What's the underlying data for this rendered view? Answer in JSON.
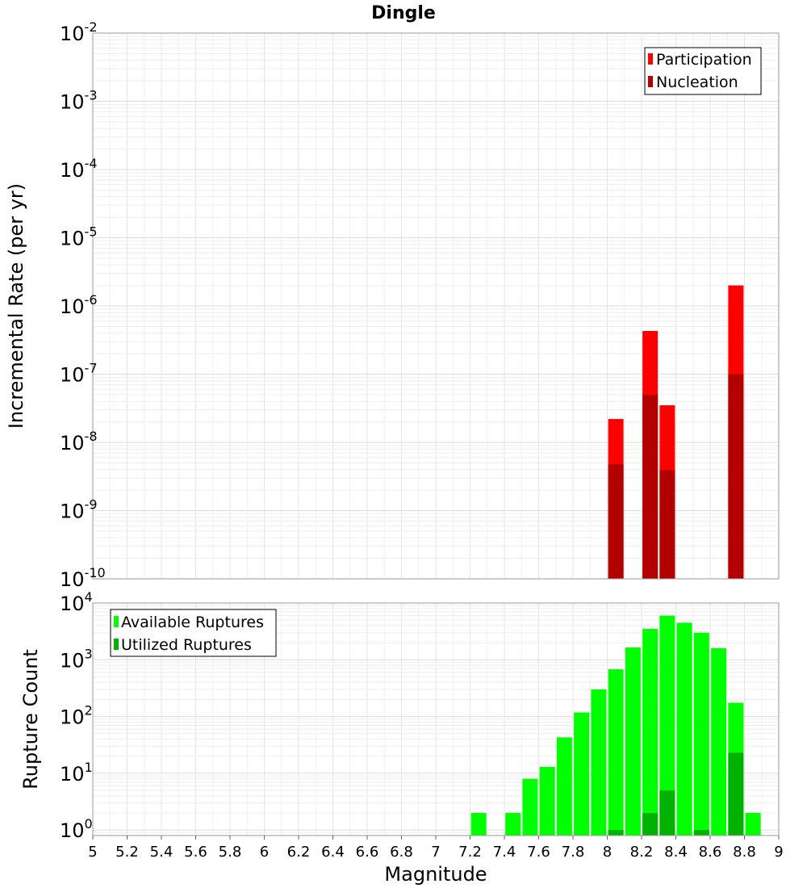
{
  "chart_data": [
    {
      "type": "bar",
      "title": "Dingle",
      "ylabel": "Incremental Rate (per yr)",
      "yscale": "log",
      "ylim": [
        1e-10,
        0.01
      ],
      "y_ticks": [
        {
          "base": "10",
          "exp": "-2"
        },
        {
          "base": "10",
          "exp": "-3"
        },
        {
          "base": "10",
          "exp": "-4"
        },
        {
          "base": "10",
          "exp": "-5"
        },
        {
          "base": "10",
          "exp": "-6"
        },
        {
          "base": "10",
          "exp": "-7"
        },
        {
          "base": "10",
          "exp": "-8"
        },
        {
          "base": "10",
          "exp": "-9"
        },
        {
          "base": "10",
          "exp": "-10"
        }
      ],
      "xlim": [
        5,
        9
      ],
      "grid": true,
      "legend_position": "top-right",
      "series": [
        {
          "name": "Participation",
          "color": "#ff0000",
          "points": [
            {
              "x": 8.05,
              "y": 2.2e-08
            },
            {
              "x": 8.25,
              "y": 4.3e-07
            },
            {
              "x": 8.35,
              "y": 3.5e-08
            },
            {
              "x": 8.75,
              "y": 2e-06
            }
          ]
        },
        {
          "name": "Nucleation",
          "color": "#b20000",
          "points": [
            {
              "x": 8.05,
              "y": 4.8e-09
            },
            {
              "x": 8.25,
              "y": 5e-08
            },
            {
              "x": 8.35,
              "y": 3.9e-09
            },
            {
              "x": 8.75,
              "y": 1e-07
            }
          ]
        }
      ]
    },
    {
      "type": "bar",
      "xlabel": "Magnitude",
      "ylabel": "Rupture Count",
      "yscale": "log",
      "ylim": [
        0.8,
        10000
      ],
      "y_ticks": [
        {
          "value": 10000,
          "base": "10",
          "exp": "4"
        },
        {
          "value": 1000,
          "base": "10",
          "exp": "3"
        },
        {
          "value": 100,
          "base": "10",
          "exp": "2"
        },
        {
          "value": 10,
          "base": "10",
          "exp": "1"
        },
        {
          "value": 1,
          "base": "10",
          "exp": "0"
        }
      ],
      "xlim": [
        5,
        9
      ],
      "x_ticks": [
        "5",
        "5.2",
        "5.4",
        "5.6",
        "5.8",
        "6",
        "6.2",
        "6.4",
        "6.6",
        "6.8",
        "7",
        "7.2",
        "7.4",
        "7.6",
        "7.8",
        "8",
        "8.2",
        "8.4",
        "8.6",
        "8.8",
        "9"
      ],
      "grid": true,
      "legend_position": "top-left",
      "series": [
        {
          "name": "Available Ruptures",
          "color": "#00ff00",
          "points": [
            {
              "x": 7.25,
              "y": 2
            },
            {
              "x": 7.45,
              "y": 2
            },
            {
              "x": 7.55,
              "y": 8
            },
            {
              "x": 7.65,
              "y": 13
            },
            {
              "x": 7.75,
              "y": 43
            },
            {
              "x": 7.85,
              "y": 118
            },
            {
              "x": 7.95,
              "y": 300
            },
            {
              "x": 8.05,
              "y": 680
            },
            {
              "x": 8.15,
              "y": 1650
            },
            {
              "x": 8.25,
              "y": 3500
            },
            {
              "x": 8.35,
              "y": 6000
            },
            {
              "x": 8.45,
              "y": 4500
            },
            {
              "x": 8.55,
              "y": 3000
            },
            {
              "x": 8.65,
              "y": 1600
            },
            {
              "x": 8.75,
              "y": 175
            },
            {
              "x": 8.85,
              "y": 2
            }
          ]
        },
        {
          "name": "Utilized Ruptures",
          "color": "#00b200",
          "points": [
            {
              "x": 8.05,
              "y": 1
            },
            {
              "x": 8.25,
              "y": 2
            },
            {
              "x": 8.35,
              "y": 5
            },
            {
              "x": 8.55,
              "y": 1
            },
            {
              "x": 8.75,
              "y": 23
            }
          ]
        }
      ]
    }
  ]
}
